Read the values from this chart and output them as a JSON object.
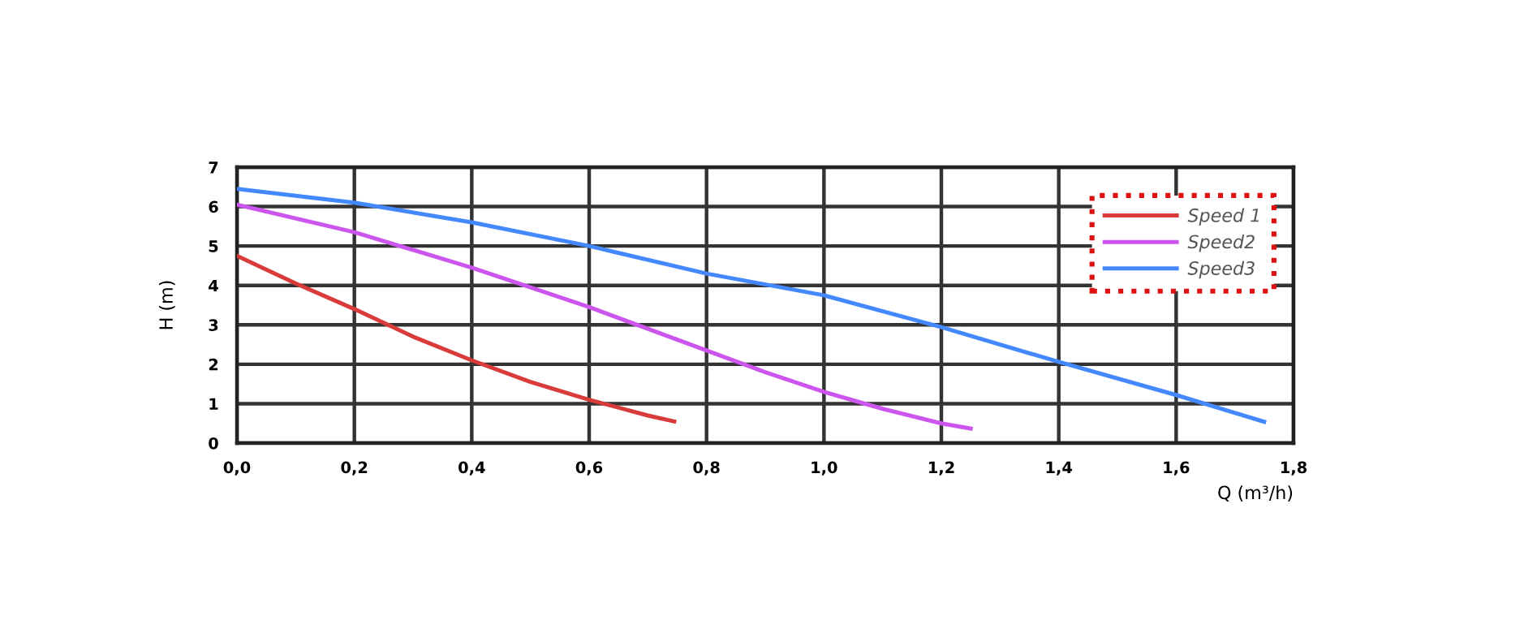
{
  "chart_data": {
    "type": "line",
    "xlabel": "Q (m³/h)",
    "ylabel": "H (m)",
    "xlim": [
      0,
      1.8
    ],
    "ylim": [
      0,
      7
    ],
    "xticks": [
      {
        "value": 0,
        "label": "0,0"
      },
      {
        "value": 0.2,
        "label": "0,2"
      },
      {
        "value": 0.4,
        "label": "0,4"
      },
      {
        "value": 0.6,
        "label": "0,6"
      },
      {
        "value": 0.8,
        "label": "0,8"
      },
      {
        "value": 1.0,
        "label": "1,0"
      },
      {
        "value": 1.2,
        "label": "1,2"
      },
      {
        "value": 1.4,
        "label": "1,4"
      },
      {
        "value": 1.6,
        "label": "1,6"
      },
      {
        "value": 1.8,
        "label": "1,8"
      }
    ],
    "yticks": [
      0,
      1,
      2,
      3,
      4,
      5,
      6,
      7
    ],
    "grid": true,
    "legend": "top right",
    "marker": "none",
    "line_style": "solid",
    "series": [
      {
        "name": "Speed 1",
        "color": "#d93a3a",
        "x": [
          0,
          0.1,
          0.2,
          0.3,
          0.4,
          0.5,
          0.6,
          0.7,
          0.745
        ],
        "values": [
          4.75,
          4.05,
          3.4,
          2.7,
          2.1,
          1.55,
          1.1,
          0.7,
          0.55
        ]
      },
      {
        "name": "Speed2",
        "color": "#cc55ee",
        "x": [
          0,
          0.2,
          0.4,
          0.6,
          0.8,
          0.9,
          1.0,
          1.1,
          1.2,
          1.25
        ],
        "values": [
          6.05,
          5.35,
          4.45,
          3.45,
          2.35,
          1.8,
          1.3,
          0.87,
          0.5,
          0.37
        ]
      },
      {
        "name": "Speed3",
        "color": "#4488ff",
        "x": [
          0,
          0.2,
          0.4,
          0.6,
          0.8,
          1.0,
          1.2,
          1.4,
          1.6,
          1.75
        ],
        "values": [
          6.45,
          6.1,
          5.6,
          5.0,
          4.3,
          3.75,
          2.94,
          2.06,
          1.22,
          0.54
        ]
      }
    ]
  }
}
